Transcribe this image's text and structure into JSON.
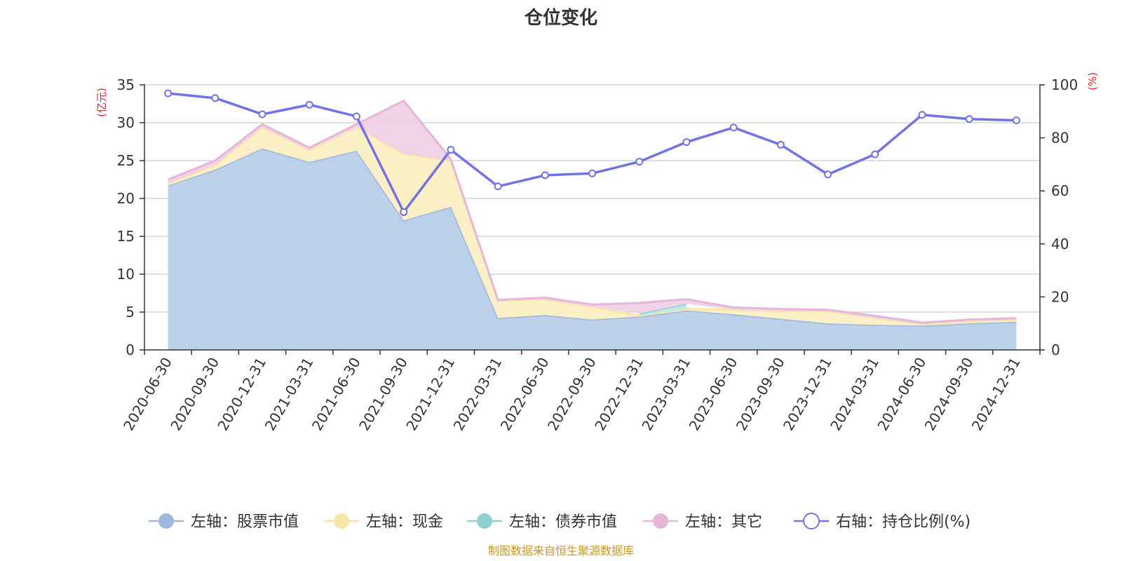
{
  "chart_data": {
    "type": "area",
    "title": "仓位变化",
    "left_unit": "(亿元)",
    "right_unit": "(%)",
    "source": "制图数据来自恒生聚源数据库",
    "categories": [
      "2020-06-30",
      "2020-09-30",
      "2020-12-31",
      "2021-03-31",
      "2021-06-30",
      "2021-09-30",
      "2021-12-31",
      "2022-03-31",
      "2022-06-30",
      "2022-09-30",
      "2022-12-31",
      "2023-03-31",
      "2023-06-30",
      "2023-09-30",
      "2023-12-31",
      "2024-03-31",
      "2024-06-30",
      "2024-09-30",
      "2024-12-31"
    ],
    "left_axis": {
      "min": 0,
      "max": 35,
      "ticks": [
        "0",
        "5",
        "10",
        "15",
        "20",
        "25",
        "30",
        "35"
      ]
    },
    "right_axis": {
      "min": 0,
      "max": 100,
      "ticks": [
        "0",
        "20",
        "40",
        "60",
        "80",
        "100"
      ]
    },
    "series": [
      {
        "name": "左轴：股票市值",
        "axis": "left",
        "kind": "area",
        "color": "#9db8e0",
        "fill": "#b8cde9",
        "values": [
          21.7,
          23.8,
          26.6,
          24.8,
          26.3,
          17.1,
          18.9,
          4.2,
          4.6,
          4.0,
          4.4,
          5.2,
          4.7,
          4.1,
          3.5,
          3.3,
          3.2,
          3.5,
          3.7
        ]
      },
      {
        "name": "左轴：现金",
        "axis": "left",
        "kind": "area",
        "color": "#f8e6a6",
        "fill": "#fbefc3",
        "values": [
          0.3,
          0.6,
          2.8,
          1.6,
          3.1,
          8.8,
          6.1,
          2.3,
          2.1,
          1.7,
          0.1,
          0.2,
          0.6,
          1.0,
          1.6,
          0.9,
          0.2,
          0.3,
          0.3
        ]
      },
      {
        "name": "左轴：债券市值",
        "axis": "left",
        "kind": "area",
        "color": "#8ed1d1",
        "fill": "#bfe6e6",
        "values": [
          0,
          0,
          0,
          0,
          0,
          0,
          0,
          0,
          0,
          0,
          0.3,
          0.7,
          0,
          0,
          0,
          0,
          0,
          0,
          0
        ]
      },
      {
        "name": "左轴：其它",
        "axis": "left",
        "kind": "area",
        "color": "#e6b6da",
        "fill": "#f0d1e7",
        "values": [
          0.5,
          0.6,
          0.4,
          0.3,
          0.4,
          7.0,
          0.2,
          0.1,
          0.2,
          0.3,
          1.4,
          0.6,
          0.3,
          0.3,
          0.2,
          0.3,
          0.2,
          0.2,
          0.2
        ]
      },
      {
        "name": "右轴：持仓比例(%)",
        "axis": "right",
        "kind": "line",
        "color": "#7272e6",
        "values": [
          96.8,
          95.0,
          88.9,
          92.5,
          88.1,
          52.0,
          75.5,
          61.7,
          65.9,
          66.6,
          71.0,
          78.4,
          83.9,
          77.4,
          66.2,
          73.8,
          88.7,
          87.1,
          86.6
        ]
      }
    ]
  }
}
